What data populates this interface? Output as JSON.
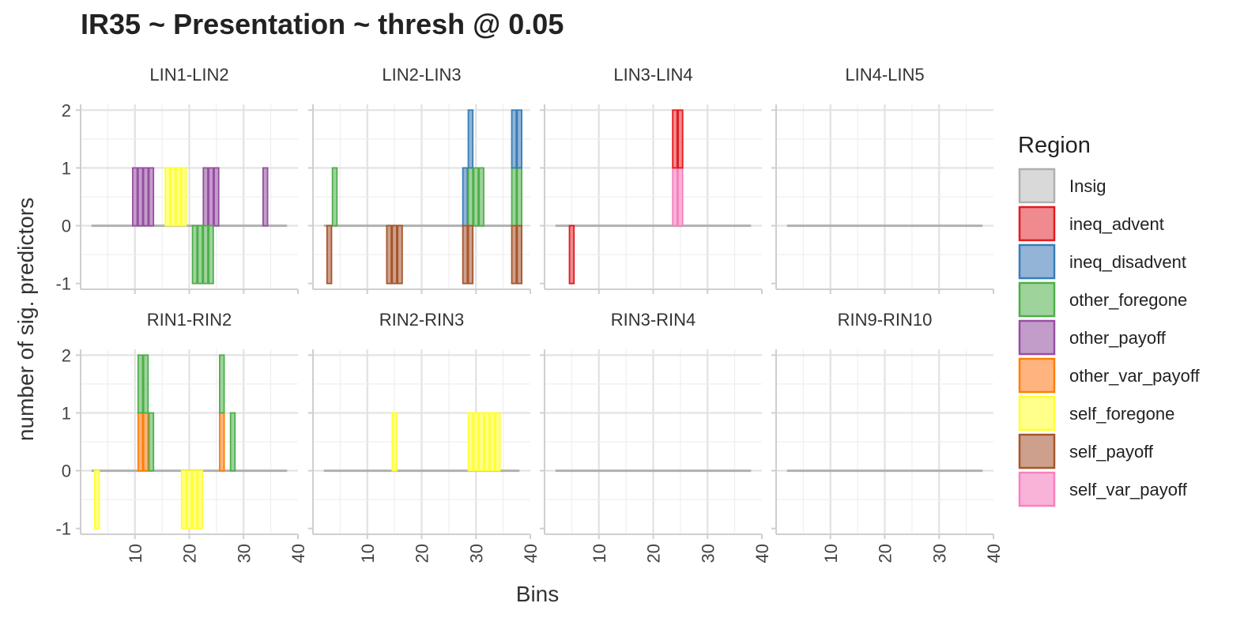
{
  "chart_data": {
    "type": "bar",
    "title": "IR35 ~ Presentation ~ thresh @ 0.05",
    "xlabel": "Bins",
    "ylabel": "number of sig. predictors",
    "xlim": [
      0,
      40
    ],
    "ylim": [
      -1,
      2
    ],
    "xticks": [
      10,
      20,
      30,
      40
    ],
    "yticks": [
      -1,
      0,
      1,
      2
    ],
    "x_tick_labels": [
      "10",
      "20",
      "30",
      "40"
    ],
    "y_tick_labels": [
      "-1",
      "0",
      "1",
      "2"
    ],
    "grid": true,
    "facet_layout": {
      "rows": 2,
      "cols": 4
    },
    "legend": {
      "title": "Region",
      "position": "right",
      "items": [
        {
          "label": "Insig",
          "fill": "#d9d9d9",
          "stroke": "#b0b0b0"
        },
        {
          "label": "ineq_advent",
          "fill": "#ef8a90",
          "stroke": "#e41a1c"
        },
        {
          "label": "ineq_disadvent",
          "fill": "#93b4d6",
          "stroke": "#377eb8"
        },
        {
          "label": "other_foregone",
          "fill": "#9fd39c",
          "stroke": "#4daf4a"
        },
        {
          "label": "other_payoff",
          "fill": "#c39dca",
          "stroke": "#984ea3"
        },
        {
          "label": "other_var_payoff",
          "fill": "#ffb37f",
          "stroke": "#ff7f00"
        },
        {
          "label": "self_foregone",
          "fill": "#ffff8a",
          "stroke": "#ffff33"
        },
        {
          "label": "self_payoff",
          "fill": "#cda08d",
          "stroke": "#a65628"
        },
        {
          "label": "self_var_payoff",
          "fill": "#f9b2d8",
          "stroke": "#f781bf"
        }
      ]
    },
    "panels": [
      {
        "label": "LIN1-LIN2",
        "bars": [
          {
            "region": "other_payoff",
            "bins": [
              10,
              11,
              12,
              13
            ],
            "base": 0,
            "value": 1
          },
          {
            "region": "self_foregone",
            "bins": [
              16,
              17,
              18,
              19
            ],
            "base": 0,
            "value": 1
          },
          {
            "region": "other_payoff",
            "bins": [
              23,
              24,
              25
            ],
            "base": 0,
            "value": 1
          },
          {
            "region": "other_payoff",
            "bins": [
              34
            ],
            "base": 0,
            "value": 1
          },
          {
            "region": "other_foregone",
            "bins": [
              21,
              22,
              23,
              24
            ],
            "base": 0,
            "value": -1
          }
        ]
      },
      {
        "label": "LIN2-LIN3",
        "bars": [
          {
            "region": "other_foregone",
            "bins": [
              4
            ],
            "base": 0,
            "value": 1
          },
          {
            "region": "ineq_disadvent",
            "bins": [
              28
            ],
            "base": 0,
            "value": 1
          },
          {
            "region": "other_foregone",
            "bins": [
              29
            ],
            "base": 0,
            "value": 1
          },
          {
            "region": "ineq_disadvent",
            "bins": [
              29
            ],
            "base": 1,
            "value": 1
          },
          {
            "region": "other_foregone",
            "bins": [
              30,
              31
            ],
            "base": 0,
            "value": 1
          },
          {
            "region": "other_foregone",
            "bins": [
              37,
              38
            ],
            "base": 0,
            "value": 1
          },
          {
            "region": "ineq_disadvent",
            "bins": [
              37,
              38
            ],
            "base": 1,
            "value": 1
          },
          {
            "region": "self_payoff",
            "bins": [
              3
            ],
            "base": 0,
            "value": -1
          },
          {
            "region": "self_payoff",
            "bins": [
              14,
              15,
              16
            ],
            "base": 0,
            "value": -1
          },
          {
            "region": "self_payoff",
            "bins": [
              28,
              29
            ],
            "base": 0,
            "value": -1
          },
          {
            "region": "self_payoff",
            "bins": [
              37,
              38
            ],
            "base": 0,
            "value": -1
          }
        ]
      },
      {
        "label": "LIN3-LIN4",
        "bars": [
          {
            "region": "self_var_payoff",
            "bins": [
              24,
              25
            ],
            "base": 0,
            "value": 1
          },
          {
            "region": "ineq_advent",
            "bins": [
              24,
              25
            ],
            "base": 1,
            "value": 1
          },
          {
            "region": "ineq_advent",
            "bins": [
              5
            ],
            "base": 0,
            "value": -1
          }
        ]
      },
      {
        "label": "LIN4-LIN5",
        "bars": []
      },
      {
        "label": "RIN1-RIN2",
        "bars": [
          {
            "region": "other_var_payoff",
            "bins": [
              11,
              12
            ],
            "base": 0,
            "value": 1
          },
          {
            "region": "other_foregone",
            "bins": [
              11,
              12
            ],
            "base": 1,
            "value": 1
          },
          {
            "region": "other_foregone",
            "bins": [
              13
            ],
            "base": 0,
            "value": 1
          },
          {
            "region": "other_var_payoff",
            "bins": [
              26
            ],
            "base": 0,
            "value": 1
          },
          {
            "region": "other_foregone",
            "bins": [
              26
            ],
            "base": 1,
            "value": 1
          },
          {
            "region": "other_foregone",
            "bins": [
              28
            ],
            "base": 0,
            "value": 1
          },
          {
            "region": "self_foregone",
            "bins": [
              3
            ],
            "base": 0,
            "value": -1
          },
          {
            "region": "self_foregone",
            "bins": [
              19,
              20,
              21,
              22
            ],
            "base": 0,
            "value": -1
          }
        ]
      },
      {
        "label": "RIN2-RIN3",
        "bars": [
          {
            "region": "self_foregone",
            "bins": [
              15
            ],
            "base": 0,
            "value": 1
          },
          {
            "region": "self_foregone",
            "bins": [
              29,
              30,
              31,
              32,
              33,
              34
            ],
            "base": 0,
            "value": 1
          }
        ]
      },
      {
        "label": "RIN3-RIN4",
        "bars": []
      },
      {
        "label": "RIN9-RIN10",
        "bars": []
      }
    ]
  }
}
